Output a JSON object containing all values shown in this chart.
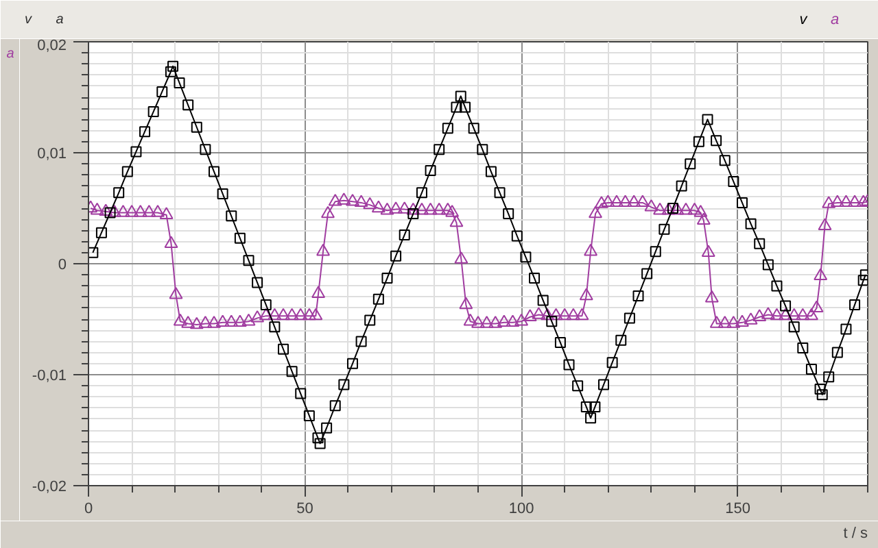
{
  "chart_data": {
    "type": "line",
    "xlabel": "t / s",
    "ylabel": "a",
    "legend": "top right",
    "grid": true,
    "line_style": "solid",
    "annotations": [
      "v",
      "a"
    ],
    "xlim": [
      0,
      180
    ],
    "ylim": [
      -0.02,
      0.02
    ],
    "xticks": [
      0,
      {
        "value": 10,
        "label": null
      },
      {
        "value": 20,
        "label": null
      },
      {
        "value": 30,
        "label": null
      },
      {
        "value": 40,
        "label": null
      },
      50,
      {
        "value": 60,
        "label": null
      },
      {
        "value": 70,
        "label": null
      },
      {
        "value": 80,
        "label": null
      },
      {
        "value": 90,
        "label": null
      },
      100,
      {
        "value": 110,
        "label": null
      },
      {
        "value": 120,
        "label": null
      },
      {
        "value": 130,
        "label": null
      },
      {
        "value": 140,
        "label": null
      },
      150,
      {
        "value": 160,
        "label": null
      },
      {
        "value": 170,
        "label": null
      },
      {
        "value": 180,
        "label": null
      }
    ],
    "yticks": [
      {
        "value": -0.02,
        "label": "-0,02"
      },
      {
        "value": -0.019,
        "label": null
      },
      {
        "value": -0.018,
        "label": null
      },
      {
        "value": -0.017,
        "label": null
      },
      {
        "value": -0.016,
        "label": null
      },
      {
        "value": -0.015,
        "label": null
      },
      {
        "value": -0.014,
        "label": null
      },
      {
        "value": -0.013,
        "label": null
      },
      {
        "value": -0.012,
        "label": null
      },
      {
        "value": -0.011,
        "label": null
      },
      {
        "value": -0.01,
        "label": "-0,01"
      },
      {
        "value": -0.009,
        "label": null
      },
      {
        "value": -0.008,
        "label": null
      },
      {
        "value": -0.007,
        "label": null
      },
      {
        "value": -0.006,
        "label": null
      },
      {
        "value": -0.005,
        "label": null
      },
      {
        "value": -0.004,
        "label": null
      },
      {
        "value": -0.003,
        "label": null
      },
      {
        "value": -0.002,
        "label": null
      },
      {
        "value": -0.001,
        "label": null
      },
      0,
      {
        "value": 0.001,
        "label": null
      },
      {
        "value": 0.002,
        "label": null
      },
      {
        "value": 0.003,
        "label": null
      },
      {
        "value": 0.004,
        "label": null
      },
      {
        "value": 0.005,
        "label": null
      },
      {
        "value": 0.006,
        "label": null
      },
      {
        "value": 0.007,
        "label": null
      },
      {
        "value": 0.008,
        "label": null
      },
      {
        "value": 0.009,
        "label": null
      },
      {
        "value": 0.01,
        "label": "0,01"
      },
      {
        "value": 0.011,
        "label": null
      },
      {
        "value": 0.012,
        "label": null
      },
      {
        "value": 0.013,
        "label": null
      },
      {
        "value": 0.014,
        "label": null
      },
      {
        "value": 0.015,
        "label": null
      },
      {
        "value": 0.016,
        "label": null
      },
      {
        "value": 0.017,
        "label": null
      },
      {
        "value": 0.018,
        "label": null
      },
      {
        "value": 0.019,
        "label": null
      },
      {
        "value": 0.02,
        "label": "0,02"
      }
    ],
    "series": [
      {
        "name": "v",
        "color": "#000000",
        "marker": "square",
        "x": [
          1,
          3,
          5,
          7,
          9,
          11,
          13,
          15,
          17,
          19,
          19.5,
          21,
          23,
          25,
          27,
          29,
          31,
          33,
          35,
          37,
          39,
          41,
          43,
          45,
          47,
          49,
          51,
          53,
          53.5,
          55,
          57,
          59,
          61,
          63,
          65,
          67,
          69,
          71,
          73,
          75,
          77,
          79,
          81,
          83,
          85,
          86,
          87,
          89,
          91,
          93,
          95,
          97,
          99,
          101,
          103,
          105,
          107,
          109,
          111,
          113,
          115,
          116,
          117,
          119,
          121,
          123,
          125,
          127,
          129,
          131,
          133,
          135,
          137,
          139,
          141,
          143,
          145,
          147,
          149,
          151,
          153,
          155,
          157,
          159,
          161,
          163,
          165,
          167,
          169,
          169.5,
          171,
          173,
          175,
          177,
          179,
          179.5
        ],
        "values": [
          0.001,
          0.0028,
          0.0046,
          0.0064,
          0.0083,
          0.0101,
          0.0119,
          0.0137,
          0.0155,
          0.0173,
          0.0178,
          0.0163,
          0.0143,
          0.0123,
          0.0103,
          0.0083,
          0.0063,
          0.0043,
          0.0023,
          0.0003,
          -0.0017,
          -0.0037,
          -0.0057,
          -0.0077,
          -0.0097,
          -0.0117,
          -0.0137,
          -0.0157,
          -0.0162,
          -0.0148,
          -0.0128,
          -0.0109,
          -0.009,
          -0.007,
          -0.0051,
          -0.0032,
          -0.0013,
          0.0007,
          0.0026,
          0.0045,
          0.0064,
          0.0084,
          0.0103,
          0.0122,
          0.0141,
          0.0151,
          0.0141,
          0.0122,
          0.0103,
          0.0083,
          0.0064,
          0.0045,
          0.0025,
          0.0006,
          -0.0013,
          -0.0033,
          -0.0052,
          -0.0071,
          -0.0091,
          -0.011,
          -0.0129,
          -0.0139,
          -0.0129,
          -0.0109,
          -0.0089,
          -0.0069,
          -0.0049,
          -0.0029,
          -0.0009,
          0.0011,
          0.0031,
          0.005,
          0.007,
          0.009,
          0.011,
          0.013,
          0.0111,
          0.0093,
          0.0074,
          0.0055,
          0.0036,
          0.0018,
          -0.0001,
          -0.002,
          -0.0038,
          -0.0057,
          -0.0076,
          -0.0095,
          -0.0113,
          -0.0118,
          -0.0102,
          -0.008,
          -0.0059,
          -0.0037,
          -0.0015,
          -0.001
        ]
      },
      {
        "name": "a",
        "color": "#a03ca0",
        "marker": "triangle",
        "x": [
          0.5,
          2,
          4,
          6,
          8,
          10,
          12,
          14,
          16,
          18,
          19.1,
          20.2,
          21.2,
          23,
          25,
          27,
          29,
          31,
          33,
          35,
          37,
          39,
          41,
          43,
          45,
          47,
          49,
          51,
          52.5,
          53.1,
          54.2,
          55.3,
          57,
          59,
          61,
          63,
          65,
          67,
          69,
          71,
          73,
          75,
          77,
          79,
          81,
          83,
          84,
          85,
          86.1,
          87.2,
          88.2,
          90,
          92,
          94,
          96,
          98,
          100,
          102,
          104,
          106,
          108,
          110,
          112,
          114,
          115,
          116,
          117.1,
          118.5,
          120,
          122,
          124,
          126,
          128,
          130,
          132,
          134,
          136,
          138,
          140,
          141.4,
          142.1,
          143.2,
          144,
          145.1,
          147,
          149,
          151,
          153,
          155,
          157,
          159,
          161,
          163,
          165,
          167,
          168.2,
          169.1,
          170.1,
          171,
          173,
          175,
          177,
          179,
          180
        ],
        "values": [
          0.005,
          0.0048,
          0.0047,
          0.0046,
          0.0046,
          0.0046,
          0.0046,
          0.0046,
          0.0046,
          0.0044,
          0.0018,
          -0.0028,
          -0.0052,
          -0.0054,
          -0.0055,
          -0.0054,
          -0.0054,
          -0.0053,
          -0.0053,
          -0.0053,
          -0.0052,
          -0.0049,
          -0.0047,
          -0.0047,
          -0.0047,
          -0.0047,
          -0.0047,
          -0.0047,
          -0.0047,
          -0.0027,
          0.0011,
          0.0045,
          0.0056,
          0.0057,
          0.0056,
          0.0055,
          0.0053,
          0.005,
          0.0048,
          0.0049,
          0.0049,
          0.0048,
          0.0048,
          0.0048,
          0.0048,
          0.0048,
          0.0046,
          0.0037,
          0.0004,
          -0.0037,
          -0.0052,
          -0.0054,
          -0.0054,
          -0.0054,
          -0.0053,
          -0.0053,
          -0.0052,
          -0.0048,
          -0.0046,
          -0.0047,
          -0.0047,
          -0.0047,
          -0.0047,
          -0.0047,
          -0.0029,
          0.0011,
          0.0045,
          0.0054,
          0.0055,
          0.0055,
          0.0055,
          0.0055,
          0.0055,
          0.0051,
          0.0048,
          0.0048,
          0.0048,
          0.0048,
          0.0048,
          0.0046,
          0.0039,
          0.001,
          -0.0031,
          -0.0054,
          -0.0054,
          -0.0054,
          -0.0053,
          -0.0051,
          -0.0048,
          -0.0046,
          -0.0047,
          -0.0047,
          -0.0047,
          -0.0047,
          -0.0047,
          -0.004,
          -0.0011,
          0.0034,
          0.0054,
          0.0055,
          0.0055,
          0.0055,
          0.0055,
          0.0056
        ]
      }
    ]
  }
}
